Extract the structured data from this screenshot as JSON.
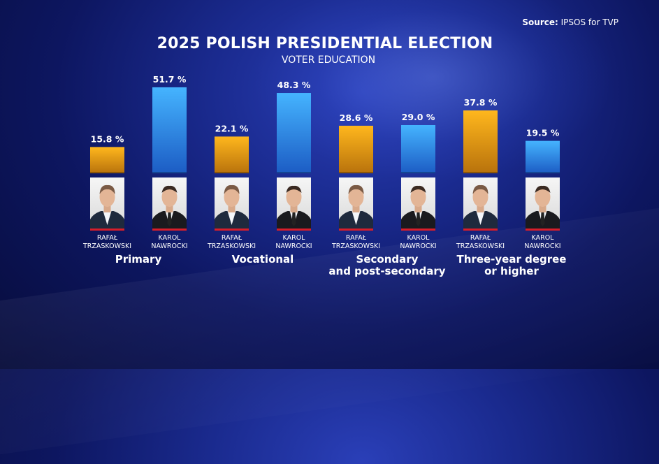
{
  "source": {
    "label": "Source:",
    "text": "IPSOS for TVP"
  },
  "chart_data": {
    "type": "bar",
    "title": "2025 POLISH PRESIDENTIAL ELECTION",
    "subtitle": "VOTER EDUCATION",
    "value_suffix": " %",
    "categories": [
      "Primary",
      "Vocational",
      "Secondary and post-secondary",
      "Three-year degree or higher"
    ],
    "category_lines": [
      [
        "Primary"
      ],
      [
        "Vocational"
      ],
      [
        "Secondary",
        "and post-secondary"
      ],
      [
        "Three-year degree",
        "or higher"
      ]
    ],
    "series": [
      {
        "name": "RAFAŁ TRZASKOWSKI",
        "name_lines": [
          "RAFAŁ",
          "TRZASKOWSKI"
        ],
        "color": "#f2a81a",
        "values": [
          15.8,
          22.1,
          28.6,
          37.8
        ]
      },
      {
        "name": "KAROL NAWROCKI",
        "name_lines": [
          "KAROL",
          "NAWROCKI"
        ],
        "color": "#3aa4ee",
        "values": [
          51.7,
          48.3,
          29.0,
          19.5
        ]
      }
    ],
    "ylim": [
      0,
      60
    ],
    "grid": false
  }
}
